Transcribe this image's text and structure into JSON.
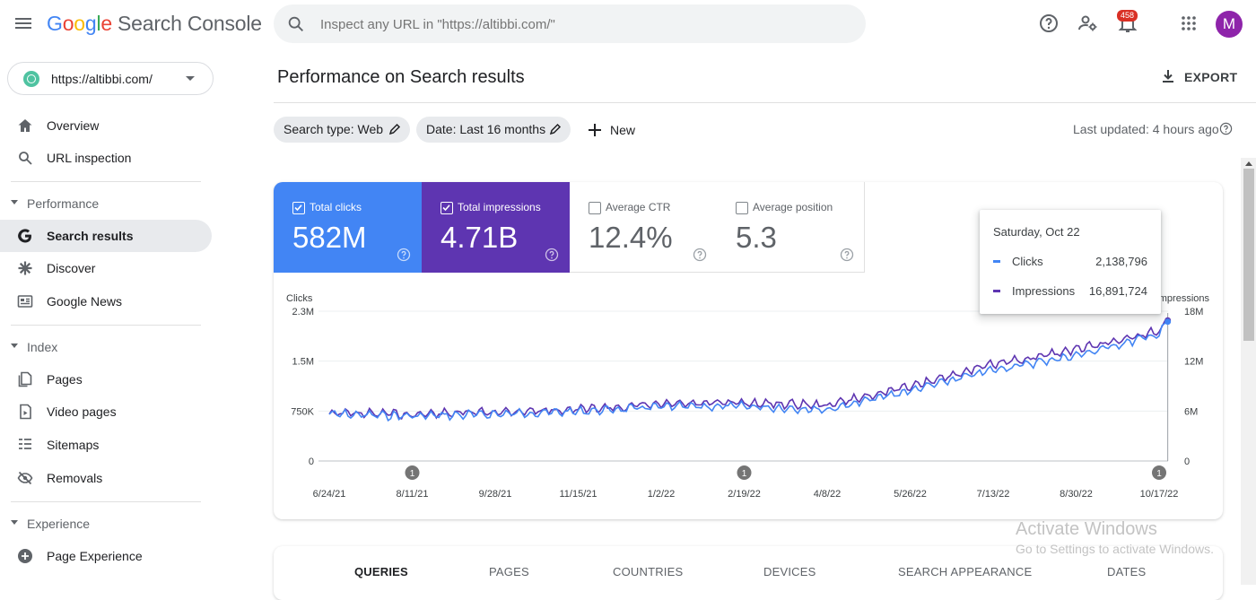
{
  "app": {
    "logo_google": [
      "G",
      "o",
      "o",
      "g",
      "l",
      "e"
    ],
    "product_name": "Search Console"
  },
  "search": {
    "placeholder": "Inspect any URL in \"https://altibbi.com/\""
  },
  "notifications": {
    "count": "458"
  },
  "user": {
    "avatar_letter": "M"
  },
  "property": {
    "url": "https://altibbi.com/"
  },
  "sidebar": {
    "top_items": [
      {
        "label": "Overview",
        "icon": "home-icon"
      },
      {
        "label": "URL inspection",
        "icon": "search-icon"
      }
    ],
    "sections": [
      {
        "title": "Performance",
        "items": [
          {
            "label": "Search results",
            "icon": "google-g-icon",
            "active": true
          },
          {
            "label": "Discover",
            "icon": "asterisk-icon"
          },
          {
            "label": "Google News",
            "icon": "news-icon"
          }
        ]
      },
      {
        "title": "Index",
        "items": [
          {
            "label": "Pages",
            "icon": "pages-icon"
          },
          {
            "label": "Video pages",
            "icon": "video-icon"
          },
          {
            "label": "Sitemaps",
            "icon": "sitemap-icon"
          },
          {
            "label": "Removals",
            "icon": "eye-off-icon"
          }
        ]
      },
      {
        "title": "Experience",
        "items": [
          {
            "label": "Page Experience",
            "icon": "plus-circle-icon"
          }
        ]
      }
    ]
  },
  "header": {
    "title": "Performance on Search results",
    "export_label": "EXPORT"
  },
  "filters": {
    "search_type": "Search type: Web",
    "date": "Date: Last 16 months",
    "new_label": "New",
    "last_updated": "Last updated: 4 hours ago"
  },
  "metrics": {
    "clicks": {
      "label": "Total clicks",
      "value": "582M",
      "checked": true
    },
    "impressions": {
      "label": "Total impressions",
      "value": "4.71B",
      "checked": true
    },
    "ctr": {
      "label": "Average CTR",
      "value": "12.4%",
      "checked": false
    },
    "position": {
      "label": "Average position",
      "value": "5.3",
      "checked": false
    }
  },
  "colors": {
    "clicks": "#4285f4",
    "impressions": "#5e35b1"
  },
  "tooltip": {
    "date": "Saturday, Oct 22",
    "rows": [
      {
        "name": "Clicks",
        "value": "2,138,796"
      },
      {
        "name": "Impressions",
        "value": "16,891,724"
      }
    ]
  },
  "chart_data": {
    "type": "line",
    "left_axis": {
      "label": "Clicks",
      "ticks": [
        "0",
        "750K",
        "1.5M",
        "2.3M"
      ],
      "ylim": [
        0,
        2300000
      ]
    },
    "right_axis": {
      "label": "Impressions",
      "ticks": [
        "0",
        "6M",
        "12M",
        "18M"
      ],
      "ylim": [
        0,
        18000000
      ]
    },
    "x_ticks": [
      "6/24/21",
      "8/11/21",
      "9/28/21",
      "11/15/21",
      "1/2/22",
      "2/19/22",
      "4/8/22",
      "5/26/22",
      "7/13/22",
      "8/30/22",
      "10/17/22"
    ],
    "annotation_label": "1",
    "annotations": [
      "8/11/21",
      "2/19/22",
      "10/17/22"
    ],
    "series": [
      {
        "name": "Clicks",
        "axis": "left",
        "x": [
          "6/24/21",
          "8/11/21",
          "9/28/21",
          "11/15/21",
          "1/2/22",
          "2/19/22",
          "4/8/22",
          "5/26/22",
          "7/13/22",
          "8/30/22",
          "10/17/22",
          "10/22/22"
        ],
        "values": [
          720000,
          690000,
          720000,
          760000,
          830000,
          840000,
          790000,
          1080000,
          1400000,
          1620000,
          1950000,
          2138796
        ]
      },
      {
        "name": "Impressions",
        "axis": "right",
        "x": [
          "6/24/21",
          "8/11/21",
          "9/28/21",
          "11/15/21",
          "1/2/22",
          "2/19/22",
          "4/8/22",
          "5/26/22",
          "7/13/22",
          "8/30/22",
          "10/17/22",
          "10/22/22"
        ],
        "values": [
          5800000,
          5600000,
          5900000,
          6200000,
          6800000,
          7000000,
          6700000,
          9000000,
          11600000,
          13400000,
          15600000,
          16891724
        ]
      }
    ]
  },
  "tabs": [
    "QUERIES",
    "PAGES",
    "COUNTRIES",
    "DEVICES",
    "SEARCH APPEARANCE",
    "DATES"
  ],
  "watermark": {
    "line1": "Activate Windows",
    "line2": "Go to Settings to activate Windows."
  }
}
